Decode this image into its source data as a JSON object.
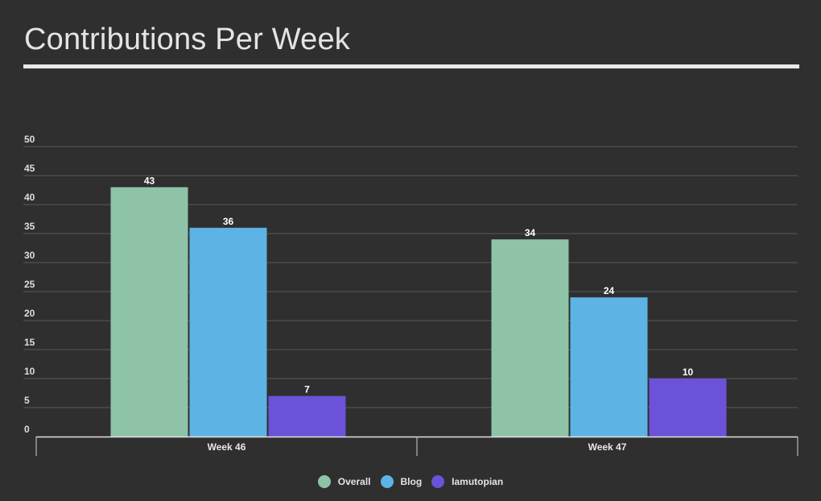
{
  "chart_data": {
    "type": "bar",
    "title": "Contributions Per Week",
    "categories": [
      "Week 46",
      "Week 47"
    ],
    "series": [
      {
        "name": "Overall",
        "values": [
          43,
          34
        ],
        "color": "#8ec3a7"
      },
      {
        "name": "Blog",
        "values": [
          36,
          24
        ],
        "color": "#5db4e4"
      },
      {
        "name": "Iamutopian",
        "values": [
          7,
          10
        ],
        "color": "#6c52d9"
      }
    ],
    "yticks": [
      "0",
      "5",
      "10",
      "15",
      "20",
      "25",
      "30",
      "35",
      "40",
      "45",
      "50"
    ],
    "ylim": [
      0,
      50
    ],
    "xlabel": "",
    "ylabel": "",
    "grid": true,
    "legend_position": "bottom-center"
  }
}
